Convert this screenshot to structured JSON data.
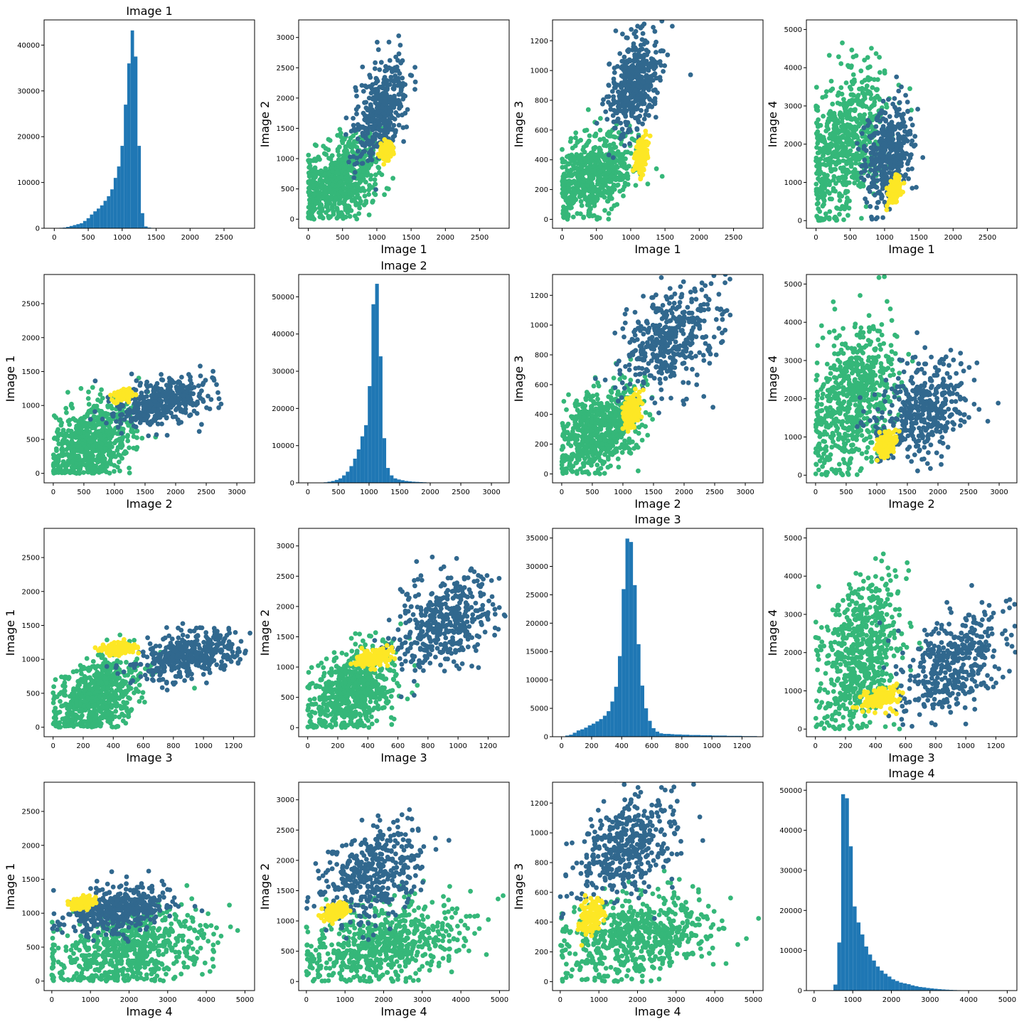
{
  "colors": {
    "hist": "#1f77b4",
    "cluster_0": "#31688e",
    "cluster_1": "#35b779",
    "cluster_2": "#fde725",
    "axes": "#000000"
  },
  "variables": [
    "Image 1",
    "Image 2",
    "Image 3",
    "Image 4"
  ],
  "chart_data": [
    {
      "type": "bar",
      "row": 0,
      "col": 0,
      "title": "Image 1",
      "xlabel": "",
      "ylabel": "",
      "xlim": [
        -150,
        2950
      ],
      "ylim": [
        0,
        45500
      ],
      "xticks": [
        0,
        500,
        1000,
        1500,
        2000,
        2500
      ],
      "yticks": [
        0,
        10000,
        20000,
        30000,
        40000
      ],
      "bin_start": 25,
      "bin_width": 50,
      "values": [
        0,
        100,
        150,
        300,
        500,
        700,
        900,
        1100,
        1600,
        2200,
        3000,
        3700,
        4300,
        5000,
        6000,
        7000,
        8500,
        11000,
        13500,
        18000,
        27000,
        36000,
        43200,
        37500,
        18000,
        3300,
        400,
        150,
        80,
        50,
        30,
        20,
        10,
        0,
        0,
        0,
        0,
        0,
        0,
        0,
        0,
        0,
        0,
        0,
        0,
        0,
        0,
        0,
        0,
        0,
        0,
        0,
        0,
        0,
        0
      ]
    },
    {
      "type": "scatter",
      "row": 0,
      "col": 1,
      "title": "",
      "xlabel": "Image 1",
      "ylabel": "Image 2",
      "xlim": [
        -140,
        2930
      ],
      "ylim": [
        -150,
        3290
      ],
      "xticks": [
        0,
        500,
        1000,
        1500,
        2000,
        2500
      ],
      "yticks": [
        0,
        500,
        1000,
        1500,
        2000,
        2500,
        3000
      ]
    },
    {
      "type": "scatter",
      "row": 0,
      "col": 2,
      "title": "",
      "xlabel": "Image 1",
      "ylabel": "Image 3",
      "xlim": [
        -140,
        2930
      ],
      "ylim": [
        -60,
        1340
      ],
      "xticks": [
        0,
        500,
        1000,
        1500,
        2000,
        2500
      ],
      "yticks": [
        0,
        200,
        400,
        600,
        800,
        1000,
        1200
      ]
    },
    {
      "type": "scatter",
      "row": 0,
      "col": 3,
      "title": "",
      "xlabel": "Image 1",
      "ylabel": "Image 4",
      "xlim": [
        -140,
        2930
      ],
      "ylim": [
        -200,
        5250
      ],
      "xticks": [
        0,
        500,
        1000,
        1500,
        2000,
        2500
      ],
      "yticks": [
        0,
        1000,
        2000,
        3000,
        4000,
        5000
      ]
    },
    {
      "type": "scatter",
      "row": 1,
      "col": 0,
      "title": "",
      "xlabel": "Image 2",
      "ylabel": "Image 1",
      "xlim": [
        -150,
        3290
      ],
      "ylim": [
        -140,
        2930
      ],
      "xticks": [
        0,
        500,
        1000,
        1500,
        2000,
        2500,
        3000
      ],
      "yticks": [
        0,
        500,
        1000,
        1500,
        2000,
        2500
      ]
    },
    {
      "type": "bar",
      "row": 1,
      "col": 1,
      "title": "Image 2",
      "xlabel": "",
      "ylabel": "",
      "xlim": [
        -150,
        3290
      ],
      "ylim": [
        0,
        56000
      ],
      "xticks": [
        0,
        500,
        1000,
        1500,
        2000,
        2500,
        3000
      ],
      "yticks": [
        0,
        10000,
        20000,
        30000,
        40000,
        50000
      ],
      "bin_start": 200,
      "bin_width": 60,
      "values": [
        50,
        150,
        300,
        500,
        800,
        1200,
        2000,
        3000,
        4500,
        6500,
        9000,
        12500,
        15500,
        26000,
        48000,
        53500,
        34000,
        12000,
        4000,
        2000,
        1200,
        900,
        700,
        500,
        400,
        300,
        250,
        200,
        150,
        100,
        60,
        40,
        30,
        20,
        10,
        5,
        0,
        0,
        0,
        0,
        0,
        0,
        0,
        0,
        0,
        0,
        0,
        0,
        0
      ]
    },
    {
      "type": "scatter",
      "row": 1,
      "col": 2,
      "title": "",
      "xlabel": "Image 2",
      "ylabel": "Image 3",
      "xlim": [
        -150,
        3290
      ],
      "ylim": [
        -60,
        1340
      ],
      "xticks": [
        0,
        500,
        1000,
        1500,
        2000,
        2500,
        3000
      ],
      "yticks": [
        0,
        200,
        400,
        600,
        800,
        1000,
        1200
      ]
    },
    {
      "type": "scatter",
      "row": 1,
      "col": 3,
      "title": "",
      "xlabel": "Image 2",
      "ylabel": "Image 4",
      "xlim": [
        -150,
        3290
      ],
      "ylim": [
        -200,
        5250
      ],
      "xticks": [
        0,
        500,
        1000,
        1500,
        2000,
        2500,
        3000
      ],
      "yticks": [
        0,
        1000,
        2000,
        3000,
        4000,
        5000
      ]
    },
    {
      "type": "scatter",
      "row": 2,
      "col": 0,
      "title": "",
      "xlabel": "Image 3",
      "ylabel": "Image 1",
      "xlim": [
        -60,
        1340
      ],
      "ylim": [
        -140,
        2930
      ],
      "xticks": [
        0,
        200,
        400,
        600,
        800,
        1000,
        1200
      ],
      "yticks": [
        0,
        500,
        1000,
        1500,
        2000,
        2500
      ]
    },
    {
      "type": "scatter",
      "row": 2,
      "col": 1,
      "title": "",
      "xlabel": "Image 3",
      "ylabel": "Image 2",
      "xlim": [
        -60,
        1340
      ],
      "ylim": [
        -150,
        3290
      ],
      "xticks": [
        0,
        200,
        400,
        600,
        800,
        1000,
        1200
      ],
      "yticks": [
        0,
        500,
        1000,
        1500,
        2000,
        2500,
        3000
      ]
    },
    {
      "type": "bar",
      "row": 2,
      "col": 2,
      "title": "Image 3",
      "xlabel": "",
      "ylabel": "",
      "xlim": [
        -60,
        1340
      ],
      "ylim": [
        0,
        36700
      ],
      "xticks": [
        0,
        200,
        400,
        600,
        800,
        1000,
        1200
      ],
      "yticks": [
        0,
        5000,
        10000,
        15000,
        20000,
        25000,
        30000,
        35000
      ],
      "bin_start": 0,
      "bin_width": 25,
      "values": [
        20,
        200,
        350,
        700,
        1100,
        1300,
        1600,
        2000,
        2300,
        2700,
        3100,
        3700,
        4500,
        6200,
        8800,
        14200,
        26000,
        34900,
        34300,
        26700,
        16300,
        9000,
        5000,
        2800,
        1500,
        900,
        600,
        500,
        500,
        450,
        400,
        400,
        350,
        350,
        300,
        300,
        300,
        250,
        250,
        250,
        200,
        200,
        200,
        200,
        150,
        150,
        150,
        150,
        100,
        100,
        100,
        100
      ]
    },
    {
      "type": "scatter",
      "row": 2,
      "col": 3,
      "title": "",
      "xlabel": "Image 3",
      "ylabel": "Image 4",
      "xlim": [
        -60,
        1340
      ],
      "ylim": [
        -200,
        5250
      ],
      "xticks": [
        0,
        200,
        400,
        600,
        800,
        1000,
        1200
      ],
      "yticks": [
        0,
        1000,
        2000,
        3000,
        4000,
        5000
      ]
    },
    {
      "type": "scatter",
      "row": 3,
      "col": 0,
      "title": "",
      "xlabel": "Image 4",
      "ylabel": "Image 1",
      "xlim": [
        -200,
        5250
      ],
      "ylim": [
        -140,
        2930
      ],
      "xticks": [
        0,
        1000,
        2000,
        3000,
        4000,
        5000
      ],
      "yticks": [
        0,
        500,
        1000,
        1500,
        2000,
        2500
      ]
    },
    {
      "type": "scatter",
      "row": 3,
      "col": 1,
      "title": "",
      "xlabel": "Image 4",
      "ylabel": "Image 2",
      "xlim": [
        -200,
        5250
      ],
      "ylim": [
        -150,
        3290
      ],
      "xticks": [
        0,
        1000,
        2000,
        3000,
        4000,
        5000
      ],
      "yticks": [
        0,
        500,
        1000,
        1500,
        2000,
        2500,
        3000
      ]
    },
    {
      "type": "scatter",
      "row": 3,
      "col": 2,
      "title": "",
      "xlabel": "Image 4",
      "ylabel": "Image 3",
      "xlim": [
        -200,
        5250
      ],
      "ylim": [
        -60,
        1340
      ],
      "xticks": [
        0,
        1000,
        2000,
        3000,
        4000,
        5000
      ],
      "yticks": [
        0,
        200,
        400,
        600,
        800,
        1000,
        1200
      ]
    },
    {
      "type": "bar",
      "row": 3,
      "col": 3,
      "title": "Image 4",
      "xlabel": "",
      "ylabel": "",
      "xlim": [
        -200,
        5250
      ],
      "ylim": [
        0,
        52000
      ],
      "xticks": [
        0,
        1000,
        2000,
        3000,
        4000,
        5000
      ],
      "yticks": [
        0,
        10000,
        20000,
        30000,
        40000,
        50000
      ],
      "bin_start": 500,
      "bin_width": 100,
      "values": [
        1500,
        12000,
        49000,
        48000,
        36000,
        21000,
        17000,
        14000,
        11000,
        9000,
        7500,
        6000,
        5000,
        4200,
        3500,
        2800,
        2400,
        2000,
        1800,
        1600,
        1300,
        1100,
        900,
        800,
        650,
        550,
        450,
        350,
        280,
        220,
        170,
        130,
        100,
        80,
        60,
        40,
        30,
        20,
        10,
        5,
        0,
        0,
        0,
        0,
        0
      ]
    }
  ],
  "cluster_profiles": {
    "Image 1": [
      1050,
      450,
      1150
    ],
    "Image 2": [
      1750,
      600,
      1150
    ],
    "Image 3": [
      900,
      300,
      430
    ],
    "Image 4": [
      1700,
      2000,
      800
    ]
  },
  "cluster_spread": {
    "Image 1": [
      180,
      300,
      45
    ],
    "Image 2": [
      400,
      350,
      70
    ],
    "Image 3": [
      170,
      140,
      60
    ],
    "Image 4": [
      650,
      1000,
      150
    ]
  },
  "cluster_point_counts": [
    420,
    650,
    150
  ]
}
